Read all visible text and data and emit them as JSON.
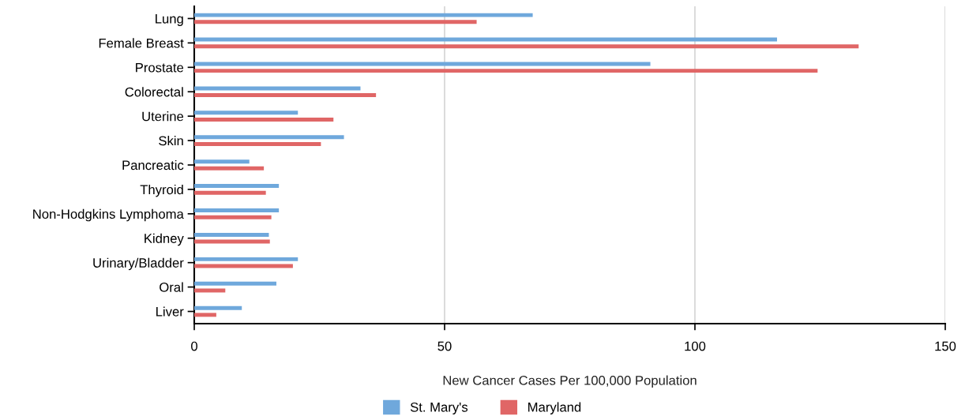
{
  "chart_data": {
    "type": "bar",
    "orientation": "horizontal",
    "xlabel": "New Cancer Cases Per 100,000 Population",
    "categories": [
      "Lung",
      "Female Breast",
      "Prostate",
      "Colorectal",
      "Uterine",
      "Skin",
      "Pancreatic",
      "Thyroid",
      "Non-Hodgkins Lymphoma",
      "Kidney",
      "Urinary/Bladder",
      "Oral",
      "Liver"
    ],
    "series": [
      {
        "name": "St. Mary's",
        "color": "#6fa8dc",
        "values": [
          67.6,
          116.4,
          91.1,
          33.2,
          20.7,
          29.9,
          11.0,
          16.9,
          16.9,
          14.9,
          20.7,
          16.4,
          9.5
        ]
      },
      {
        "name": "Maryland",
        "color": "#e06666",
        "values": [
          56.4,
          132.7,
          124.5,
          36.3,
          27.8,
          25.3,
          13.9,
          14.3,
          15.4,
          15.1,
          19.7,
          6.2,
          4.4
        ]
      }
    ],
    "xlim": [
      0,
      150
    ],
    "xticks": [
      0,
      50,
      100,
      150
    ],
    "grid": "x",
    "legend": "bottom"
  }
}
